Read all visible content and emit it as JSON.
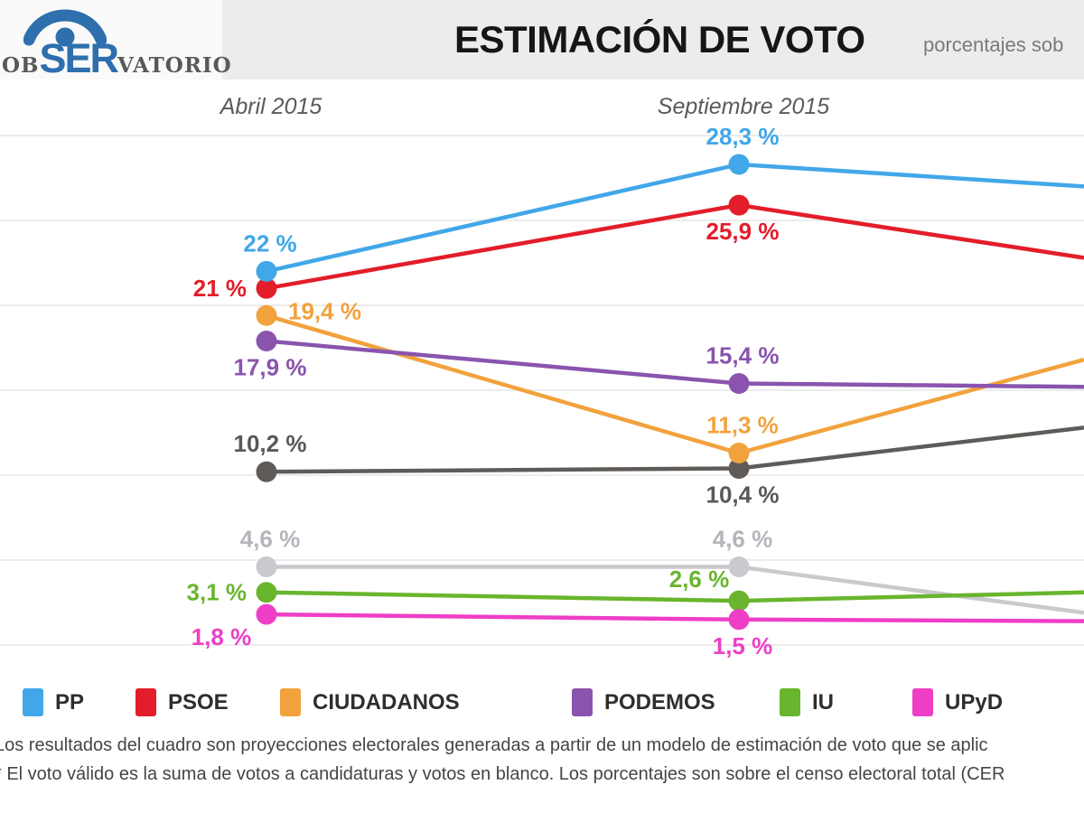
{
  "header": {
    "logo": {
      "prefix": "OB",
      "mid": "SER",
      "suffix": "VATORIO"
    },
    "title": "ESTIMACIÓN DE VOTO",
    "subtitle": "porcentajes sob"
  },
  "chart_data": {
    "type": "line",
    "title": "ESTIMACIÓN DE VOTO",
    "x_categories": [
      "Abril 2015",
      "Septiembre 2015"
    ],
    "y_axis": {
      "min": 0,
      "max": 30,
      "unit": "%",
      "gridline_step": 5,
      "gridlines": [
        0,
        5,
        10,
        15,
        20,
        25,
        30
      ],
      "grid": true,
      "tick_labels_visible": false
    },
    "series": [
      {
        "name": "PP",
        "color": "#42a7e8",
        "values": [
          22,
          28.3
        ],
        "point_labels": [
          "22 %",
          "28,3 %"
        ],
        "label_pos": [
          "above",
          "above"
        ],
        "right_edge_trend_value": 27.0,
        "in_legend": true
      },
      {
        "name": "PSOE",
        "color": "#e31d29",
        "values": [
          21,
          25.9
        ],
        "point_labels": [
          "21 %",
          "25,9 %"
        ],
        "label_pos": [
          "left",
          "below"
        ],
        "right_edge_trend_value": 22.8,
        "in_legend": true
      },
      {
        "name": "CIUDADANOS",
        "color": "#f2a23d",
        "values": [
          19.4,
          11.3
        ],
        "point_labels": [
          "19,4 %",
          "11,3 %"
        ],
        "label_pos": [
          "right",
          "above"
        ],
        "right_edge_trend_value": 16.8,
        "in_legend": true
      },
      {
        "name": "PODEMOS",
        "color": "#8a54ae",
        "values": [
          17.9,
          15.4
        ],
        "point_labels": [
          "17,9 %",
          "15,4 %"
        ],
        "label_pos": [
          "below",
          "above"
        ],
        "right_edge_trend_value": 15.2,
        "in_legend": true
      },
      {
        "name": "",
        "color": "#5f5b58",
        "values": [
          10.2,
          10.4
        ],
        "point_labels": [
          "10,2 %",
          "10,4 %"
        ],
        "label_pos": [
          "above",
          "below"
        ],
        "right_edge_trend_value": 12.8,
        "in_legend": false,
        "label_color": "#58595b"
      },
      {
        "name": "",
        "color": "#c9c9ce",
        "values": [
          4.6,
          4.6
        ],
        "point_labels": [
          "4,6 %",
          "4,6 %"
        ],
        "label_pos": [
          "above",
          "above"
        ],
        "right_edge_trend_value": 1.9,
        "in_legend": false,
        "label_color": "#b5b5bc"
      },
      {
        "name": "IU",
        "color": "#69b52d",
        "values": [
          3.1,
          2.6
        ],
        "point_labels": [
          "3,1 %",
          "2,6 %"
        ],
        "label_pos": [
          "left",
          "above-left"
        ],
        "right_edge_trend_value": 3.1,
        "in_legend": true
      },
      {
        "name": "UPyD",
        "color": "#ee3ec6",
        "values": [
          1.8,
          1.5
        ],
        "point_labels": [
          "1,8 %",
          "1,5 %"
        ],
        "label_pos": [
          "below-left",
          "below"
        ],
        "right_edge_trend_value": 1.4,
        "in_legend": true
      }
    ],
    "legend_position": "bottom"
  },
  "footer": {
    "line1": "Los resultados del cuadro son proyecciones electorales generadas a partir de un modelo de estimación de voto que se aplic",
    "line2": "* El voto válido es la suma de votos a candidaturas y votos en blanco. Los porcentajes son sobre el censo electoral total (CER"
  }
}
